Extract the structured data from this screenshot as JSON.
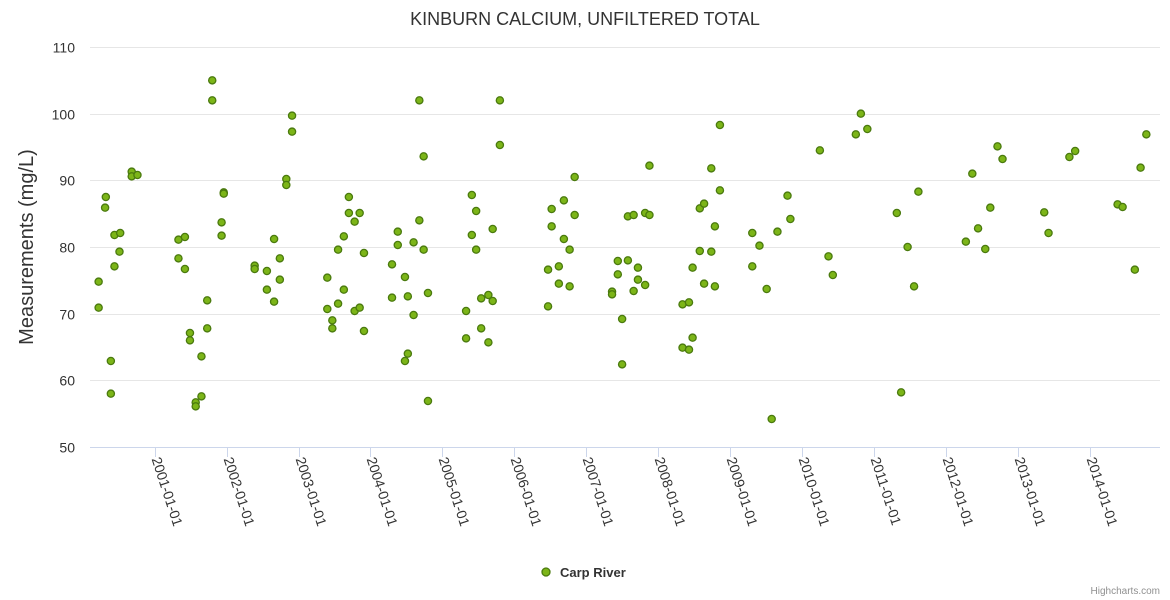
{
  "chart_data": {
    "type": "scatter",
    "title": "KINBURN CALCIUM, UNFILTERED TOTAL",
    "ylabel": "Measurements (mg/L)",
    "xlabel": "",
    "ylim": [
      50,
      110
    ],
    "yticks": [
      50,
      60,
      70,
      80,
      90,
      100,
      110
    ],
    "xlim": [
      2000.1,
      2014.98
    ],
    "xticks": [
      {
        "value": 2001.0,
        "label": "2001-01-01"
      },
      {
        "value": 2002.0,
        "label": "2002-01-01"
      },
      {
        "value": 2003.0,
        "label": "2003-01-01"
      },
      {
        "value": 2004.0,
        "label": "2004-01-01"
      },
      {
        "value": 2005.0,
        "label": "2005-01-01"
      },
      {
        "value": 2006.0,
        "label": "2006-01-01"
      },
      {
        "value": 2007.0,
        "label": "2007-01-01"
      },
      {
        "value": 2008.0,
        "label": "2008-01-01"
      },
      {
        "value": 2009.0,
        "label": "2009-01-01"
      },
      {
        "value": 2010.0,
        "label": "2010-01-01"
      },
      {
        "value": 2011.0,
        "label": "2011-01-01"
      },
      {
        "value": 2012.0,
        "label": "2012-01-01"
      },
      {
        "value": 2013.0,
        "label": "2013-01-01"
      },
      {
        "value": 2014.0,
        "label": "2014-01-01"
      }
    ],
    "grid": true,
    "legend_position": "bottom-center",
    "series": [
      {
        "name": "Carp River",
        "color": "#7cb518",
        "edge_color": "#4a7a0e",
        "points": [
          [
            2000.22,
            74.8
          ],
          [
            2000.22,
            70.9
          ],
          [
            2000.32,
            87.5
          ],
          [
            2000.31,
            85.9
          ],
          [
            2000.39,
            62.9
          ],
          [
            2000.39,
            58.0
          ],
          [
            2000.44,
            81.8
          ],
          [
            2000.44,
            77.1
          ],
          [
            2000.52,
            82.1
          ],
          [
            2000.51,
            79.3
          ],
          [
            2000.68,
            91.3
          ],
          [
            2000.68,
            90.6
          ],
          [
            2000.76,
            90.8
          ],
          [
            2001.33,
            81.1
          ],
          [
            2001.33,
            78.3
          ],
          [
            2001.42,
            81.5
          ],
          [
            2001.42,
            76.7
          ],
          [
            2001.49,
            67.1
          ],
          [
            2001.49,
            66.0
          ],
          [
            2001.57,
            56.7
          ],
          [
            2001.57,
            56.1
          ],
          [
            2001.65,
            57.6
          ],
          [
            2001.65,
            63.6
          ],
          [
            2001.73,
            72.0
          ],
          [
            2001.73,
            67.8
          ],
          [
            2001.8,
            105.0
          ],
          [
            2001.8,
            102.0
          ],
          [
            2001.93,
            81.7
          ],
          [
            2001.93,
            83.7
          ],
          [
            2001.96,
            88.2
          ],
          [
            2001.96,
            88.0
          ],
          [
            2002.39,
            77.2
          ],
          [
            2002.39,
            76.7
          ],
          [
            2002.56,
            76.4
          ],
          [
            2002.56,
            73.6
          ],
          [
            2002.66,
            81.2
          ],
          [
            2002.66,
            71.8
          ],
          [
            2002.74,
            78.3
          ],
          [
            2002.74,
            75.1
          ],
          [
            2002.83,
            90.2
          ],
          [
            2002.83,
            89.3
          ],
          [
            2002.91,
            99.7
          ],
          [
            2002.91,
            97.3
          ],
          [
            2003.4,
            75.4
          ],
          [
            2003.4,
            70.7
          ],
          [
            2003.47,
            69.0
          ],
          [
            2003.47,
            67.8
          ],
          [
            2003.55,
            79.6
          ],
          [
            2003.55,
            71.5
          ],
          [
            2003.63,
            81.6
          ],
          [
            2003.63,
            73.6
          ],
          [
            2003.7,
            87.5
          ],
          [
            2003.7,
            85.1
          ],
          [
            2003.78,
            83.8
          ],
          [
            2003.78,
            70.4
          ],
          [
            2003.85,
            85.1
          ],
          [
            2003.85,
            70.9
          ],
          [
            2003.91,
            79.1
          ],
          [
            2003.91,
            67.4
          ],
          [
            2004.3,
            77.4
          ],
          [
            2004.3,
            72.4
          ],
          [
            2004.38,
            82.3
          ],
          [
            2004.38,
            80.3
          ],
          [
            2004.48,
            75.5
          ],
          [
            2004.48,
            62.9
          ],
          [
            2004.52,
            72.6
          ],
          [
            2004.52,
            64.0
          ],
          [
            2004.6,
            80.7
          ],
          [
            2004.6,
            69.8
          ],
          [
            2004.68,
            102.0
          ],
          [
            2004.68,
            84.0
          ],
          [
            2004.74,
            93.6
          ],
          [
            2004.74,
            79.6
          ],
          [
            2004.8,
            73.1
          ],
          [
            2004.8,
            56.9
          ],
          [
            2005.33,
            70.4
          ],
          [
            2005.33,
            66.3
          ],
          [
            2005.41,
            87.8
          ],
          [
            2005.41,
            81.8
          ],
          [
            2005.47,
            85.4
          ],
          [
            2005.47,
            79.6
          ],
          [
            2005.54,
            72.3
          ],
          [
            2005.54,
            67.8
          ],
          [
            2005.64,
            72.8
          ],
          [
            2005.64,
            65.7
          ],
          [
            2005.7,
            82.7
          ],
          [
            2005.7,
            71.9
          ],
          [
            2005.8,
            102.0
          ],
          [
            2005.8,
            95.3
          ],
          [
            2006.47,
            76.6
          ],
          [
            2006.47,
            71.1
          ],
          [
            2006.52,
            85.7
          ],
          [
            2006.52,
            83.1
          ],
          [
            2006.62,
            77.1
          ],
          [
            2006.62,
            74.5
          ],
          [
            2006.69,
            87.0
          ],
          [
            2006.69,
            81.2
          ],
          [
            2006.77,
            79.6
          ],
          [
            2006.77,
            74.1
          ],
          [
            2006.84,
            90.5
          ],
          [
            2006.84,
            84.8
          ],
          [
            2007.36,
            73.3
          ],
          [
            2007.36,
            72.9
          ],
          [
            2007.44,
            77.9
          ],
          [
            2007.44,
            75.9
          ],
          [
            2007.5,
            69.2
          ],
          [
            2007.5,
            62.4
          ],
          [
            2007.58,
            84.6
          ],
          [
            2007.58,
            78.0
          ],
          [
            2007.66,
            84.8
          ],
          [
            2007.66,
            73.4
          ],
          [
            2007.72,
            76.9
          ],
          [
            2007.72,
            75.1
          ],
          [
            2007.82,
            85.1
          ],
          [
            2007.82,
            74.3
          ],
          [
            2007.88,
            92.2
          ],
          [
            2007.88,
            84.8
          ],
          [
            2008.34,
            71.4
          ],
          [
            2008.34,
            64.9
          ],
          [
            2008.43,
            71.7
          ],
          [
            2008.43,
            64.6
          ],
          [
            2008.48,
            76.9
          ],
          [
            2008.48,
            66.4
          ],
          [
            2008.58,
            85.8
          ],
          [
            2008.58,
            79.4
          ],
          [
            2008.64,
            86.5
          ],
          [
            2008.64,
            74.5
          ],
          [
            2008.74,
            91.8
          ],
          [
            2008.74,
            79.3
          ],
          [
            2008.79,
            83.1
          ],
          [
            2008.79,
            74.1
          ],
          [
            2008.86,
            98.3
          ],
          [
            2008.86,
            88.5
          ],
          [
            2009.31,
            82.1
          ],
          [
            2009.31,
            77.1
          ],
          [
            2009.41,
            80.2
          ],
          [
            2009.51,
            73.7
          ],
          [
            2009.58,
            54.2
          ],
          [
            2009.66,
            82.3
          ],
          [
            2009.8,
            87.7
          ],
          [
            2009.84,
            84.2
          ],
          [
            2010.25,
            94.5
          ],
          [
            2010.37,
            78.6
          ],
          [
            2010.43,
            75.8
          ],
          [
            2010.75,
            96.9
          ],
          [
            2010.82,
            100.0
          ],
          [
            2010.91,
            97.7
          ],
          [
            2011.32,
            85.1
          ],
          [
            2011.38,
            58.2
          ],
          [
            2011.47,
            80.0
          ],
          [
            2011.56,
            74.1
          ],
          [
            2011.62,
            88.3
          ],
          [
            2012.28,
            80.8
          ],
          [
            2012.37,
            91.0
          ],
          [
            2012.45,
            82.8
          ],
          [
            2012.55,
            79.7
          ],
          [
            2012.62,
            85.9
          ],
          [
            2012.72,
            95.1
          ],
          [
            2012.79,
            93.2
          ],
          [
            2013.37,
            85.2
          ],
          [
            2013.43,
            82.1
          ],
          [
            2013.72,
            93.5
          ],
          [
            2013.8,
            94.4
          ],
          [
            2014.39,
            86.4
          ],
          [
            2014.46,
            86.0
          ],
          [
            2014.63,
            76.6
          ],
          [
            2014.71,
            91.9
          ],
          [
            2014.79,
            96.9
          ]
        ]
      }
    ],
    "credits": "Highcharts.com"
  }
}
